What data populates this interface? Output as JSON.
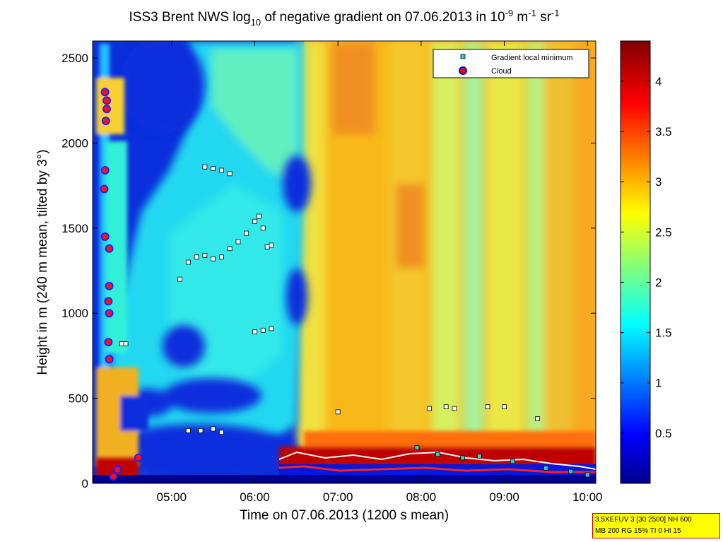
{
  "title": {
    "prefix": "ISS3 Brent NWS log",
    "sub": "10",
    "middle": " of negative gradient on 07.06.2013 in 10",
    "sup1": "-9",
    "unit1": " m",
    "sup2": "-1",
    "unit2": " sr",
    "sup3": "-1"
  },
  "xlabel": "Time on 07.06.2013 (1200 s mean)",
  "ylabel": "Height in m (240 m mean, tilted by 3°)",
  "legend": [
    {
      "label": "Gradient local minimum",
      "marker": "square",
      "color": "#33cccc"
    },
    {
      "label": "Cloud",
      "marker": "circle",
      "color": "#ff0000"
    }
  ],
  "infobox": {
    "line1": "3.5XEFUV 3 [30 2500] NH 600",
    "line2": "MB 200 RG 15% TI 0 HI 15"
  },
  "chart_data": {
    "type": "heatmap",
    "title": "ISS3 Brent NWS log10 of negative gradient on 07.06.2013 in 10^-9 m^-1 sr^-1",
    "xlabel": "Time on 07.06.2013 (1200 s mean)",
    "ylabel": "Height in m (240 m mean, tilted by 3°)",
    "x_range_hours": [
      4.05,
      10.1
    ],
    "y_range": [
      0,
      2600
    ],
    "x_ticks": [
      {
        "label": "05:00",
        "value": 5.0
      },
      {
        "label": "06:00",
        "value": 6.0
      },
      {
        "label": "07:00",
        "value": 7.0
      },
      {
        "label": "08:00",
        "value": 8.0
      },
      {
        "label": "09:00",
        "value": 9.0
      },
      {
        "label": "10:00",
        "value": 10.0
      }
    ],
    "y_ticks": [
      0,
      500,
      1000,
      1500,
      2000,
      2500
    ],
    "colorbar": {
      "colormap": "jet",
      "range": [
        0,
        4.4
      ],
      "ticks": [
        0.5,
        1,
        1.5,
        2,
        2.5,
        3,
        3.5,
        4
      ]
    },
    "field_description": "low values (blue) before ~06:30 above ~600 m; cyan/green plume; high values (yellow/orange) after 06:30; red near-surface layer after 06:15",
    "gradient_local_minimum": [
      [
        4.4,
        820
      ],
      [
        4.45,
        820
      ],
      [
        5.1,
        1200
      ],
      [
        5.2,
        1300
      ],
      [
        5.3,
        1330
      ],
      [
        5.4,
        1340
      ],
      [
        5.5,
        1320
      ],
      [
        5.6,
        1330
      ],
      [
        5.7,
        1380
      ],
      [
        5.8,
        1420
      ],
      [
        5.9,
        1470
      ],
      [
        6.0,
        1540
      ],
      [
        6.05,
        1570
      ],
      [
        6.1,
        1500
      ],
      [
        6.15,
        1390
      ],
      [
        6.2,
        1400
      ],
      [
        5.4,
        1860
      ],
      [
        5.5,
        1850
      ],
      [
        5.6,
        1840
      ],
      [
        5.7,
        1820
      ],
      [
        6.0,
        890
      ],
      [
        6.1,
        900
      ],
      [
        6.2,
        910
      ],
      [
        5.2,
        310
      ],
      [
        5.35,
        310
      ],
      [
        5.5,
        320
      ],
      [
        5.6,
        300
      ],
      [
        7.0,
        420
      ],
      [
        8.1,
        440
      ],
      [
        8.3,
        450
      ],
      [
        8.4,
        440
      ],
      [
        8.8,
        450
      ],
      [
        9.0,
        450
      ],
      [
        9.4,
        380
      ],
      [
        7.95,
        210
      ],
      [
        8.2,
        170
      ],
      [
        8.5,
        150
      ],
      [
        8.7,
        160
      ],
      [
        9.1,
        130
      ],
      [
        9.5,
        90
      ],
      [
        9.8,
        70
      ],
      [
        10.0,
        50
      ]
    ],
    "cloud": [
      [
        4.2,
        2300
      ],
      [
        4.22,
        2250
      ],
      [
        4.22,
        2200
      ],
      [
        4.21,
        2130
      ],
      [
        4.2,
        1840
      ],
      [
        4.19,
        1730
      ],
      [
        4.2,
        1450
      ],
      [
        4.25,
        1380
      ],
      [
        4.25,
        1160
      ],
      [
        4.24,
        1070
      ],
      [
        4.25,
        1000
      ],
      [
        4.24,
        830
      ],
      [
        4.25,
        730
      ],
      [
        4.6,
        150
      ],
      [
        4.35,
        80
      ],
      [
        4.3,
        40
      ]
    ]
  }
}
